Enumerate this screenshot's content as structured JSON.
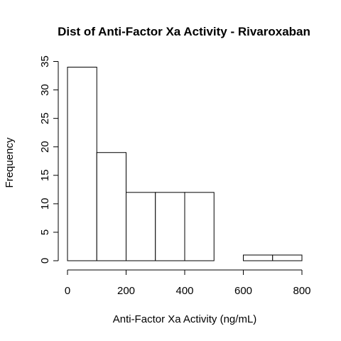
{
  "chart_data": {
    "type": "bar",
    "title": "Dist of Anti-Factor Xa Activity - Rivaroxaban",
    "xlabel": "Anti-Factor Xa Activity (ng/mL)",
    "ylabel": "Frequency",
    "xlim": [
      0,
      800
    ],
    "ylim": [
      0,
      35
    ],
    "grid": false,
    "x_ticks": [
      0,
      200,
      400,
      600,
      800
    ],
    "y_ticks": [
      0,
      5,
      10,
      15,
      20,
      25,
      30,
      35
    ],
    "bins": [
      {
        "start": 0,
        "end": 100,
        "count": 34
      },
      {
        "start": 100,
        "end": 200,
        "count": 19
      },
      {
        "start": 200,
        "end": 300,
        "count": 12
      },
      {
        "start": 300,
        "end": 400,
        "count": 12
      },
      {
        "start": 400,
        "end": 500,
        "count": 12
      },
      {
        "start": 500,
        "end": 600,
        "count": 0
      },
      {
        "start": 600,
        "end": 700,
        "count": 1
      },
      {
        "start": 700,
        "end": 800,
        "count": 1
      }
    ],
    "colors": {
      "bar_fill": "#ffffff",
      "bar_stroke": "#000000",
      "text": "#000000"
    }
  }
}
